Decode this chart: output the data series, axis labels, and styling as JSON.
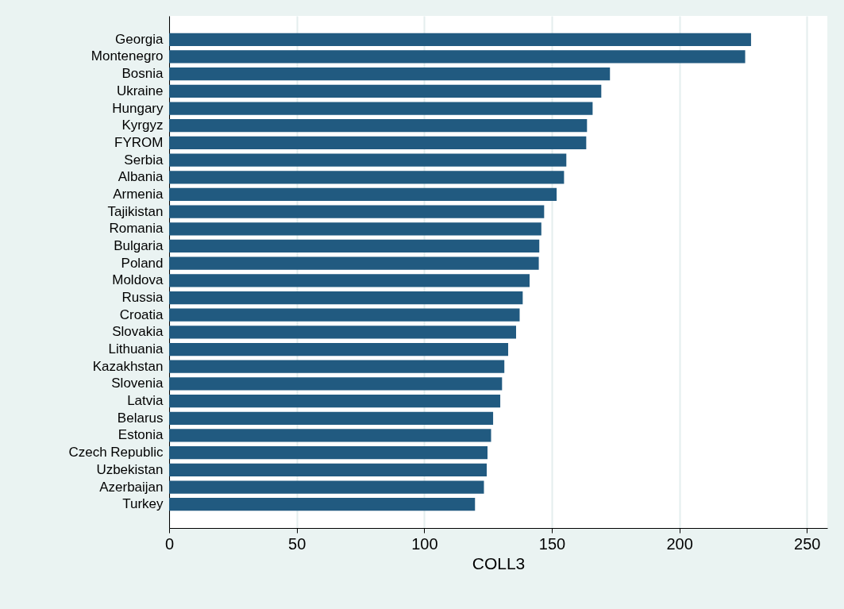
{
  "chart_data": {
    "type": "bar",
    "orientation": "horizontal",
    "xlabel": "COLL3",
    "categories": [
      "Georgia",
      "Montenegro",
      "Bosnia",
      "Ukraine",
      "Hungary",
      "Kyrgyz",
      "FYROM",
      "Serbia",
      "Albania",
      "Armenia",
      "Tajikistan",
      "Romania",
      "Bulgaria",
      "Poland",
      "Moldova",
      "Russia",
      "Croatia",
      "Slovakia",
      "Lithuania",
      "Kazakhstan",
      "Slovenia",
      "Latvia",
      "Belarus",
      "Estonia",
      "Czech Republic",
      "Uzbekistan",
      "Azerbaijan",
      "Turkey"
    ],
    "values": [
      228.1,
      225.8,
      172.8,
      169.4,
      166.0,
      163.8,
      163.5,
      155.7,
      154.8,
      151.9,
      147.0,
      145.9,
      145.1,
      144.9,
      141.3,
      138.6,
      137.4,
      136.0,
      132.9,
      131.4,
      130.5,
      129.8,
      127.0,
      126.2,
      124.8,
      124.5,
      123.4,
      119.9
    ],
    "color": "#215a80",
    "xlim": [
      0,
      258
    ],
    "xticks": [
      0,
      50,
      100,
      150,
      200,
      250
    ],
    "grid": "x"
  }
}
